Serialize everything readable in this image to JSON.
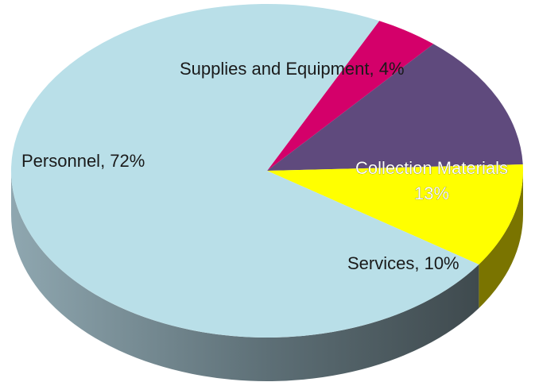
{
  "chart_data": {
    "type": "pie",
    "style": "3d",
    "slices": [
      {
        "name": "Supplies and Equipment",
        "value": 4,
        "label": "Supplies and Equipment, 4%",
        "color": "#d4006a",
        "side_color": "#8a0046"
      },
      {
        "name": "Collection Materials",
        "value": 13,
        "label_lines": [
          "Collection Materials",
          "13%"
        ],
        "color": "#5f4a7d",
        "side_color": "#2d2540"
      },
      {
        "name": "Services",
        "value": 10,
        "label": "Services, 10%",
        "color": "#ffff00",
        "side_color": "#7a7400"
      },
      {
        "name": "Personnel",
        "value": 72,
        "label": "Personnel, 72%",
        "color": "#b9dfe8",
        "side_color": "#7f9aa3"
      }
    ],
    "value_unit": "%",
    "legend": "none",
    "title": ""
  }
}
